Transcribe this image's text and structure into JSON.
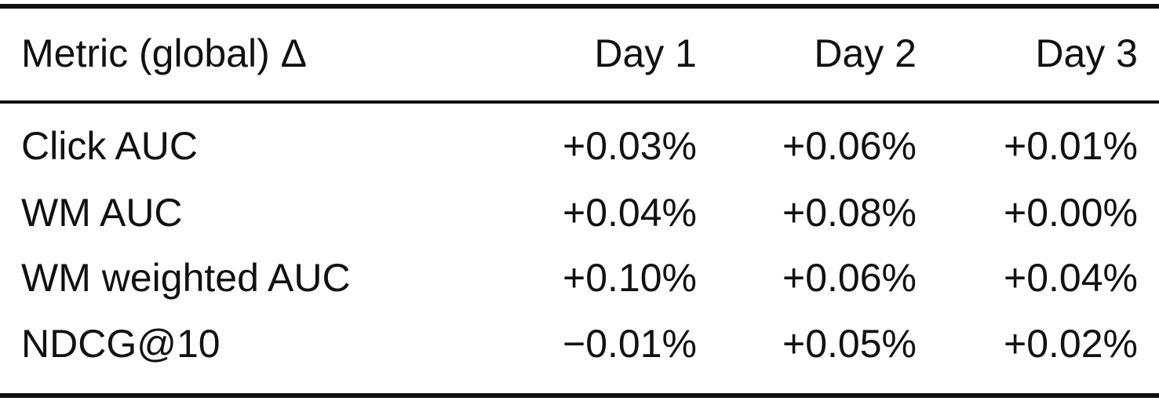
{
  "table": {
    "header": [
      "Metric (global) Δ",
      "Day 1",
      "Day 2",
      "Day 3"
    ],
    "rows": [
      [
        "Click AUC",
        "+0.03%",
        "+0.06%",
        "+0.01%"
      ],
      [
        "WM AUC",
        "+0.04%",
        "+0.08%",
        "+0.00%"
      ],
      [
        "WM weighted AUC",
        "+0.10%",
        "+0.06%",
        "+0.04%"
      ],
      [
        "NDCG@10",
        "−0.01%",
        "+0.05%",
        "+0.02%"
      ]
    ]
  }
}
